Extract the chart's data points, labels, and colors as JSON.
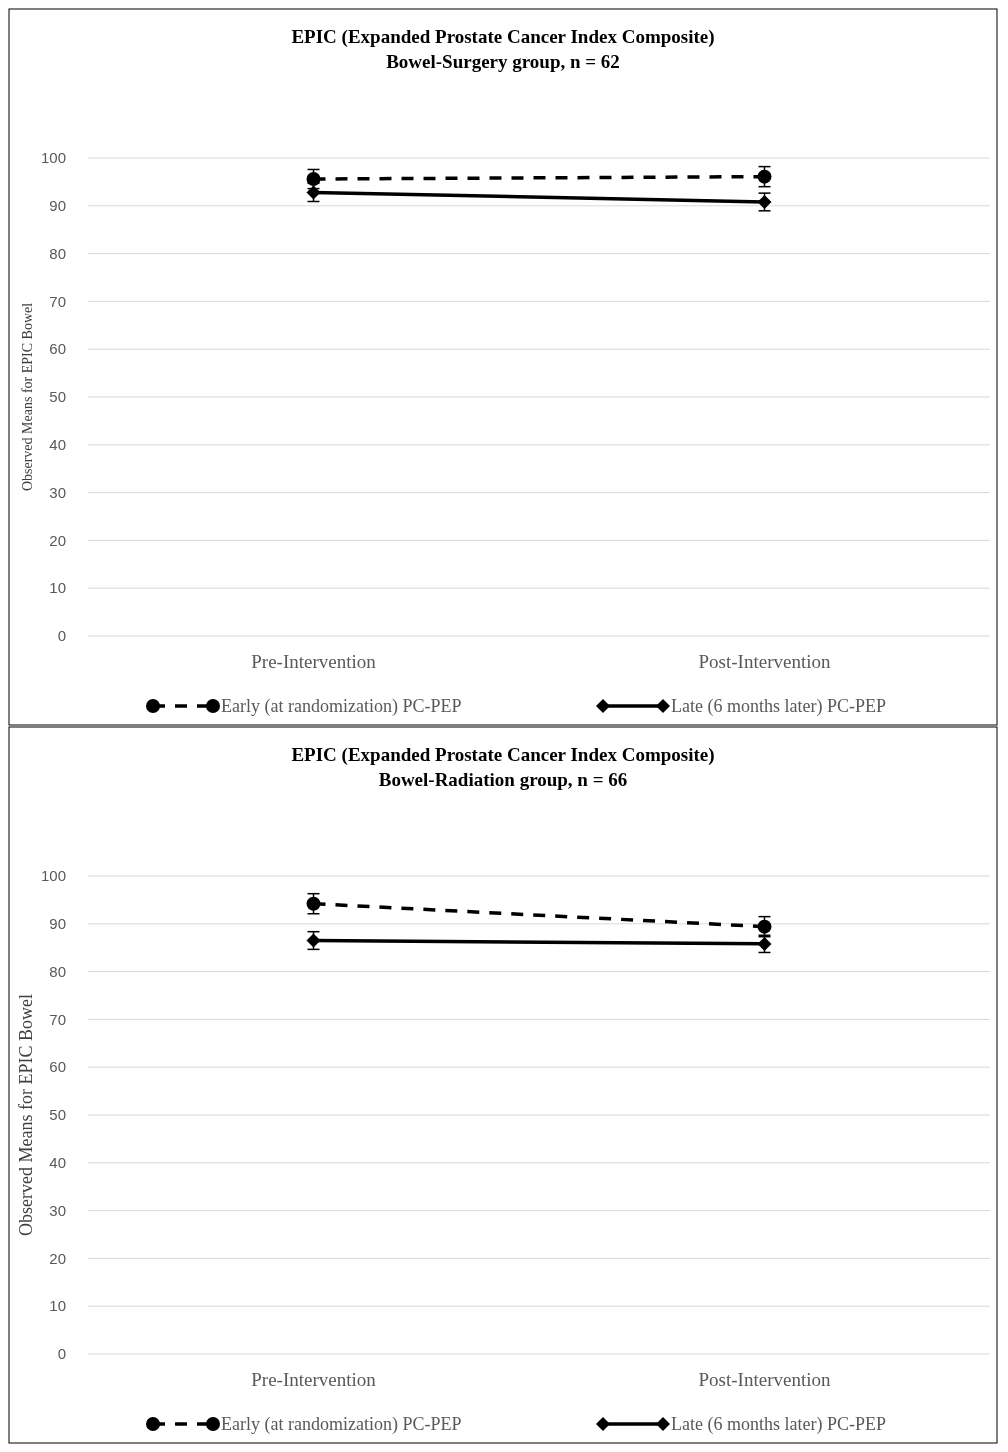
{
  "chart_data": [
    {
      "type": "line",
      "title": "EPIC (Expanded Prostate Cancer Index Composite)",
      "subtitle": "Bowel-Surgery group, n = 62",
      "ylabel": "Observed Means for EPIC Bowel",
      "categories": [
        "Pre-Intervention",
        "Post-Intervention"
      ],
      "ylim": [
        0,
        100
      ],
      "yticks": [
        0,
        10,
        20,
        30,
        40,
        50,
        60,
        70,
        80,
        90,
        100
      ],
      "grid": "y",
      "legend": "bottom",
      "series": [
        {
          "name": "Early (at randomization) PC-PEP",
          "color": "#000000",
          "values": [
            95.6,
            96.1
          ],
          "errors": [
            2,
            2.1
          ],
          "marker": "circle",
          "line_style": "dashed"
        },
        {
          "name": "Late (6 months later) PC-PEP",
          "color": "#000000",
          "values": [
            92.8,
            90.8
          ],
          "errors": [
            1.9,
            1.85
          ],
          "marker": "diamond",
          "line_style": "solid"
        }
      ]
    },
    {
      "type": "line",
      "title": "EPIC (Expanded Prostate Cancer Index Composite)",
      "subtitle": "Bowel-Radiation group, n = 66",
      "ylabel": "Observed Means for EPIC Bowel",
      "categories": [
        "Pre-Intervention",
        "Post-Intervention"
      ],
      "ylim": [
        0,
        100
      ],
      "yticks": [
        0,
        10,
        20,
        30,
        40,
        50,
        60,
        70,
        80,
        90,
        100
      ],
      "grid": "y",
      "legend": "bottom",
      "series": [
        {
          "name": "Early (at randomization) PC-PEP",
          "color": "#000000",
          "values": [
            94.2,
            89.4
          ],
          "errors": [
            2.1,
            2.1
          ],
          "marker": "circle",
          "line_style": "dashed"
        },
        {
          "name": "Late (6 months later) PC-PEP",
          "color": "#000000",
          "values": [
            86.5,
            85.8
          ],
          "errors": [
            1.85,
            1.8
          ],
          "marker": "diamond",
          "line_style": "solid"
        }
      ]
    }
  ]
}
